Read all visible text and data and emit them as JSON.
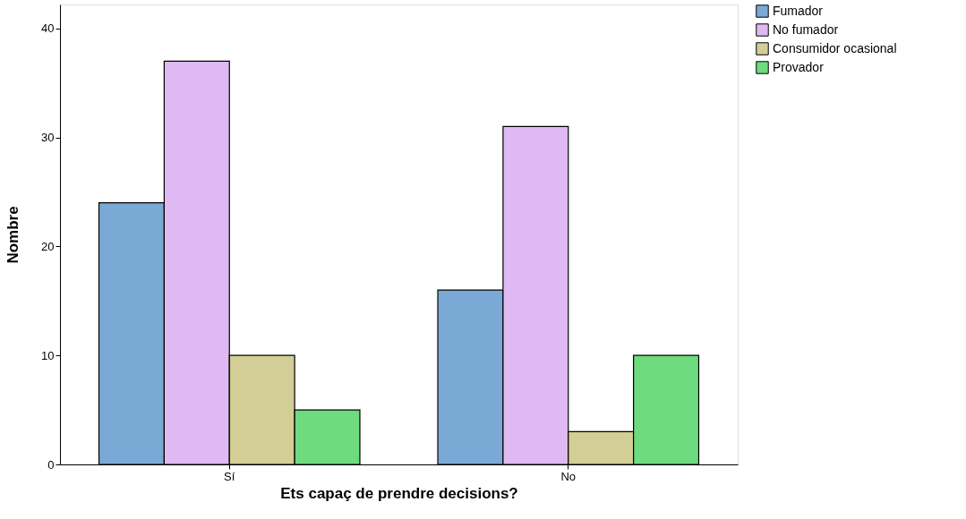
{
  "chart_data": {
    "type": "bar",
    "xlabel": "Ets capaç de prendre decisions?",
    "ylabel": "Nombre",
    "categories": [
      "Sí",
      "No"
    ],
    "series": [
      {
        "name": "Fumador",
        "color": "#7ba9d6",
        "values": [
          24,
          16
        ]
      },
      {
        "name": "No fumador",
        "color": "#dfb9f2",
        "values": [
          37,
          31
        ]
      },
      {
        "name": "Consumidor ocasional",
        "color": "#d3cd96",
        "values": [
          10,
          3
        ]
      },
      {
        "name": "Provador",
        "color": "#6edb7e",
        "values": [
          5,
          10
        ]
      }
    ],
    "ylim": [
      0,
      42.2
    ],
    "yticks": [
      0,
      10,
      20,
      30,
      40
    ],
    "grid": false,
    "legend": "right"
  }
}
